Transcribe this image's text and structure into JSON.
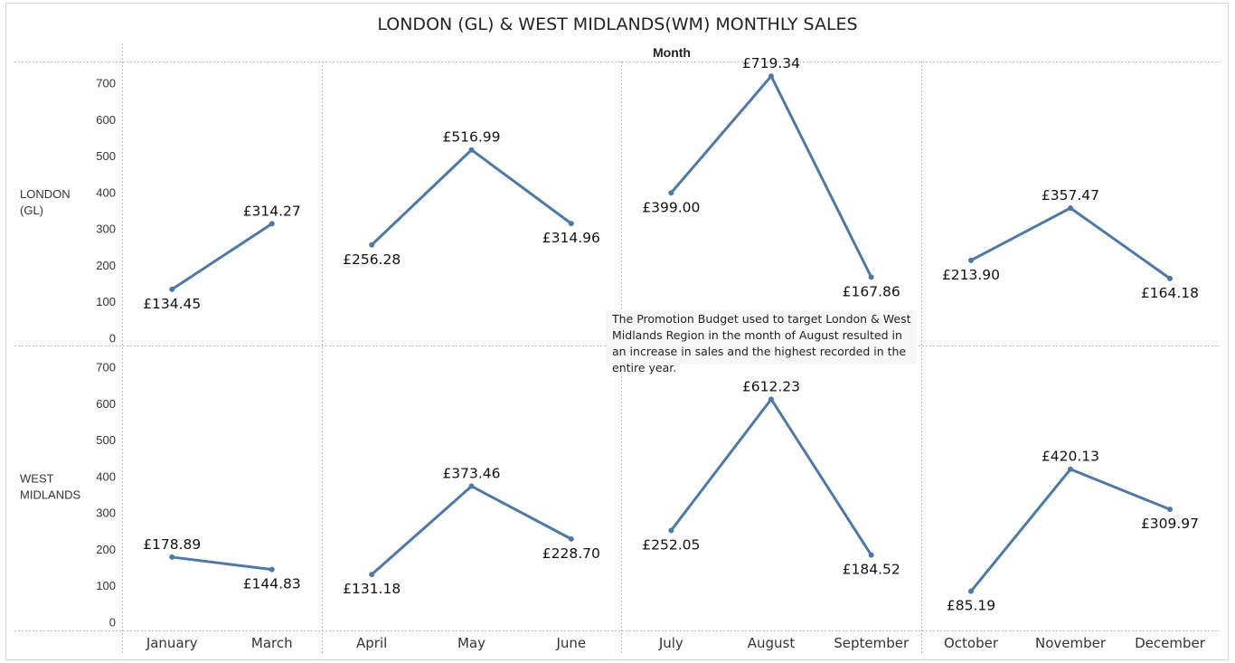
{
  "chart_data": {
    "type": "line",
    "title": "LONDON (GL) & WEST MIDLANDS(WM) MONTHLY SALES",
    "column_header": "Month",
    "ylim": [
      0,
      720
    ],
    "y_ticks": [
      "0",
      "100",
      "200",
      "300",
      "400",
      "500",
      "600",
      "700"
    ],
    "grid": false,
    "line_color": "#4e79a7",
    "panes": [
      {
        "months": [
          "January",
          "March"
        ]
      },
      {
        "months": [
          "April",
          "May",
          "June"
        ]
      },
      {
        "months": [
          "July",
          "August",
          "September"
        ]
      },
      {
        "months": [
          "October",
          "November",
          "December"
        ]
      }
    ],
    "rows": [
      {
        "label_lines": [
          "LONDON",
          "(GL)"
        ],
        "panes": [
          {
            "values": [
              134.45,
              314.27
            ],
            "labels": [
              "£134.45",
              "£314.27"
            ]
          },
          {
            "values": [
              256.28,
              516.99,
              314.96
            ],
            "labels": [
              "£256.28",
              "£516.99",
              "£314.96"
            ]
          },
          {
            "values": [
              399.0,
              719.34,
              167.86
            ],
            "labels": [
              "£399.00",
              "£719.34",
              "£167.86"
            ]
          },
          {
            "values": [
              213.9,
              357.47,
              164.18
            ],
            "labels": [
              "£213.90",
              "£357.47",
              "£164.18"
            ]
          }
        ]
      },
      {
        "label_lines": [
          "WEST",
          "MIDLANDS"
        ],
        "panes": [
          {
            "values": [
              178.89,
              144.83
            ],
            "labels": [
              "£178.89",
              "£144.83"
            ]
          },
          {
            "values": [
              131.18,
              373.46,
              228.7
            ],
            "labels": [
              "£131.18",
              "£373.46",
              "£228.70"
            ]
          },
          {
            "values": [
              252.05,
              612.23,
              184.52
            ],
            "labels": [
              "£252.05",
              "£612.23",
              "£184.52"
            ]
          },
          {
            "values": [
              85.19,
              420.13,
              309.97
            ],
            "labels": [
              "£85.19",
              "£420.13",
              "£309.97"
            ]
          }
        ]
      }
    ],
    "annotation": {
      "lines": [
        "The Promotion Budget used to target London & West",
        "Midlands Region in the month of August resulted in",
        "an increase in sales and the highest recorded in the",
        "entire year."
      ]
    }
  }
}
